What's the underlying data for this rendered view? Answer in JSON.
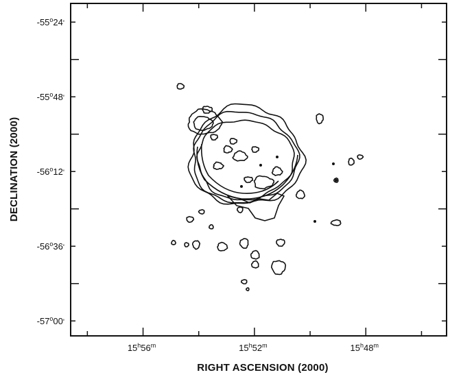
{
  "chart_data": {
    "type": "contour",
    "title": "",
    "xlabel": "RIGHT ASCENSION (2000)",
    "ylabel": "DECLINATION (2000)",
    "x_ticks": [
      {
        "h": "15",
        "hsup": "h",
        "m": "56",
        "msup": "m",
        "label": "15h56m",
        "ra_min": 956
      },
      {
        "h": "15",
        "hsup": "h",
        "m": "52",
        "msup": "m",
        "label": "15h52m",
        "ra_min": 952
      },
      {
        "h": "15",
        "hsup": "h",
        "m": "48",
        "msup": "m",
        "label": "15h48m",
        "ra_min": 948
      }
    ],
    "y_ticks": [
      {
        "deg": "-55",
        "dsup": "o",
        "min": "24",
        "msup": "'",
        "label": "-55°24'",
        "dec_deg": -55.4
      },
      {
        "deg": "-55",
        "dsup": "o",
        "min": "48",
        "msup": "'",
        "label": "-55°48'",
        "dec_deg": -55.8
      },
      {
        "deg": "-56",
        "dsup": "o",
        "min": "12",
        "msup": "'",
        "label": "-56°12'",
        "dec_deg": -56.2
      },
      {
        "deg": "-56",
        "dsup": "o",
        "min": "36",
        "msup": "'",
        "label": "-56°36'",
        "dec_deg": -56.6
      },
      {
        "deg": "-57",
        "dsup": "o",
        "min": "00",
        "msup": "'",
        "label": "-57°00'",
        "dec_deg": -57.0
      }
    ],
    "xlim": [
      958.6,
      945.1
    ],
    "ylim": [
      -57.08,
      -55.3
    ],
    "grid": false,
    "legend": "none",
    "line_color": "#111111",
    "background": "#ffffff"
  }
}
